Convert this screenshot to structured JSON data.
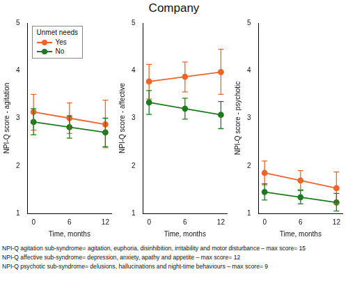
{
  "title": "Company",
  "footnotes": [
    "NPI-Q agitation sub-syndrome= agitation, euphoria, disinhibition, irritability and motor disturbance – max score= 15",
    "NPI-Q affective sub-syndrome= depression, anxiety, apathy and appetite – max score= 12",
    "NPI-Q psychotic sub-syndrome= delusions, hallucinations and night-time behaviours – max score= 9"
  ],
  "chart_data": [
    {
      "type": "line",
      "x_label": "Time, months",
      "y_label": "NPI-Q score - agitation",
      "x": [
        0,
        6,
        12
      ],
      "xlim": [
        -1,
        13
      ],
      "xticks": [
        0,
        6,
        12
      ],
      "ylim": [
        1,
        5
      ],
      "yticks": [
        1,
        2,
        3,
        4,
        5
      ],
      "grid": false,
      "marker": "circle",
      "legend": "upper left",
      "legend_title": "Unmet needs",
      "series": [
        {
          "name": "Yes",
          "color": "#f0642a",
          "values": [
            3.13,
            3.0,
            2.87
          ],
          "lower": [
            2.75,
            2.68,
            2.38
          ],
          "upper": [
            3.5,
            3.32,
            3.38
          ]
        },
        {
          "name": "No",
          "color": "#1f7a1f",
          "values": [
            2.92,
            2.81,
            2.7
          ],
          "lower": [
            2.65,
            2.58,
            2.4
          ],
          "upper": [
            3.2,
            3.05,
            3.0
          ]
        }
      ]
    },
    {
      "type": "line",
      "x_label": "Time, months",
      "y_label": "NPI-Q score - affective",
      "x": [
        0,
        6,
        12
      ],
      "xlim": [
        -1,
        13
      ],
      "xticks": [
        0,
        6,
        12
      ],
      "ylim": [
        1,
        5
      ],
      "yticks": [
        1,
        2,
        3,
        4,
        5
      ],
      "grid": false,
      "marker": "circle",
      "series": [
        {
          "name": "Yes",
          "color": "#f0642a",
          "values": [
            3.77,
            3.87,
            3.97
          ],
          "lower": [
            3.4,
            3.55,
            3.5
          ],
          "upper": [
            4.13,
            4.18,
            4.45
          ]
        },
        {
          "name": "No",
          "color": "#1f7a1f",
          "values": [
            3.33,
            3.2,
            3.07
          ],
          "lower": [
            3.08,
            2.98,
            2.78
          ],
          "upper": [
            3.58,
            3.42,
            3.35
          ]
        }
      ]
    },
    {
      "type": "line",
      "x_label": "Time, months",
      "y_label": "NPI-Q score - psychotic",
      "x": [
        0,
        6,
        12
      ],
      "xlim": [
        -1,
        13
      ],
      "xticks": [
        0,
        6,
        12
      ],
      "ylim": [
        1,
        5
      ],
      "yticks": [
        1,
        2,
        3,
        4,
        5
      ],
      "grid": false,
      "marker": "circle",
      "series": [
        {
          "name": "Yes",
          "color": "#f0642a",
          "values": [
            1.85,
            1.69,
            1.53
          ],
          "lower": [
            1.6,
            1.5,
            1.2
          ],
          "upper": [
            2.1,
            1.9,
            1.87
          ]
        },
        {
          "name": "No",
          "color": "#1f7a1f",
          "values": [
            1.45,
            1.34,
            1.23
          ],
          "lower": [
            1.28,
            1.2,
            1.05
          ],
          "upper": [
            1.62,
            1.48,
            1.42
          ]
        }
      ]
    }
  ]
}
